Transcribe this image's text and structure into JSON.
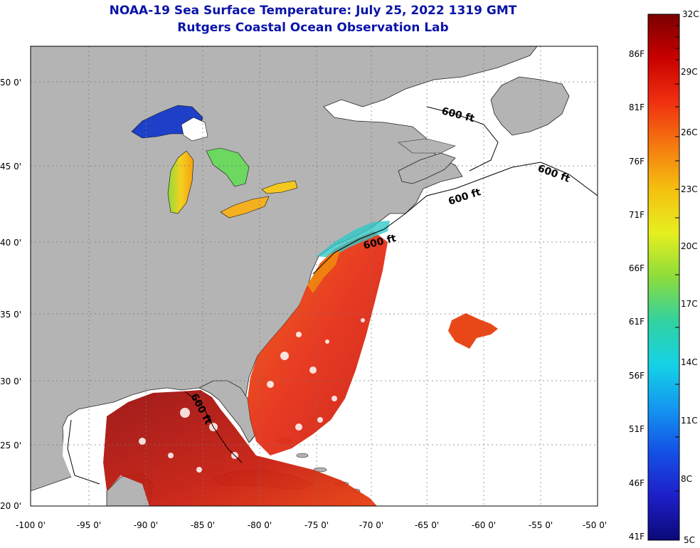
{
  "title": "NOAA-19 Sea Surface Temperature:  July 25, 2022 1319 GMT",
  "subtitle": "Rutgers Coastal Ocean Observation Lab",
  "map": {
    "lon_labels": [
      "-100 0'",
      "-95 0'",
      "-90 0'",
      "-85 0'",
      "-80 0'",
      "-75 0'",
      "-70 0'",
      "-65 0'",
      "-60 0'",
      "-55 0'",
      "-50 0'"
    ],
    "lat_labels": [
      "50 0'",
      "45 0'",
      "40 0'",
      "35 0'",
      "30 0'",
      "25 0'",
      "20 0'"
    ],
    "isobath_label": "600 ft",
    "land_color": "#b4b4b4",
    "ocean_nodata_color": "#ffffff",
    "grid": true
  },
  "colorbar": {
    "celsius_labels": [
      "32C",
      "29C",
      "26C",
      "23C",
      "20C",
      "17C",
      "14C",
      "11C",
      "8C",
      "5C"
    ],
    "fahrenheit_labels": [
      "86F",
      "81F",
      "76F",
      "71F",
      "66F",
      "61F",
      "56F",
      "51F",
      "46F",
      "41F"
    ],
    "colors_top_to_bottom": [
      "#7a0000",
      "#c80000",
      "#f03010",
      "#f57a10",
      "#f5c010",
      "#e6ef20",
      "#8cdc3c",
      "#32d2a0",
      "#14d2e6",
      "#1496f0",
      "#1450e6",
      "#1e1ec8",
      "#0a0a78"
    ]
  }
}
